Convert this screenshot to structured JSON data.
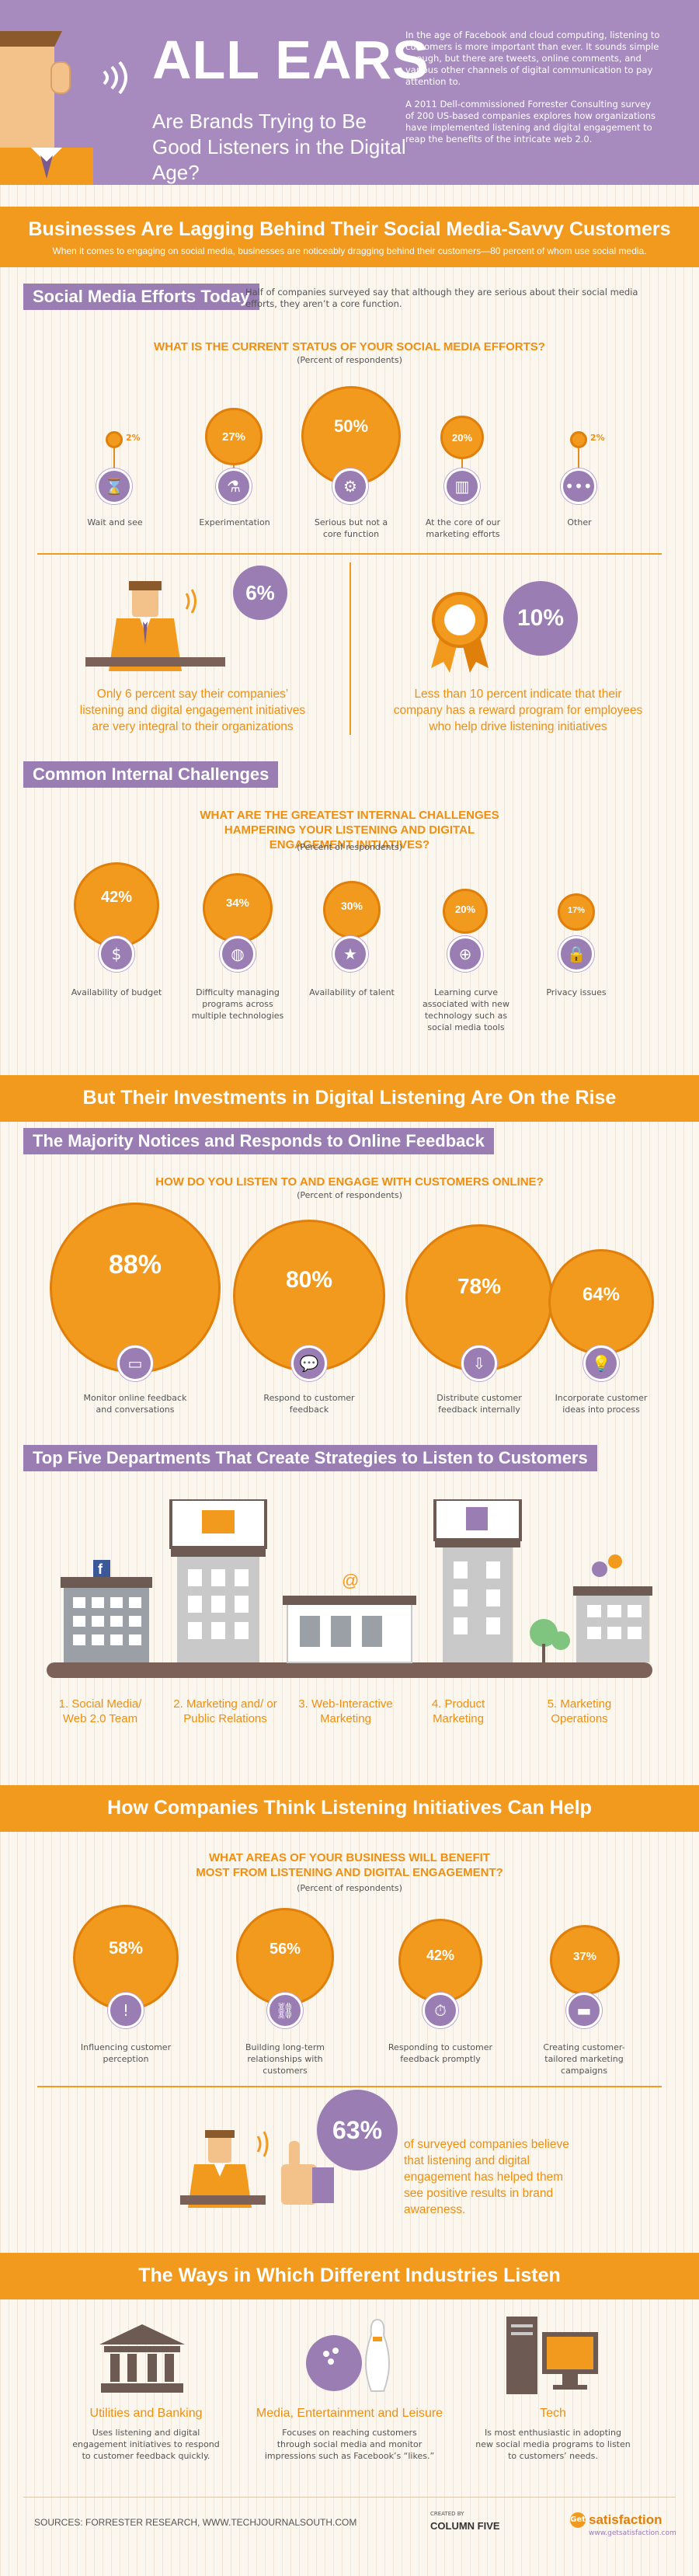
{
  "header": {
    "title": "ALL EARS",
    "subtitle": "Are Brands Trying to Be Good Listeners in the Digital Age?",
    "intro_p1": "In the age of Facebook and cloud computing, listening to customers is more important than ever. It sounds simple enough, but there are tweets, online comments, and various other channels of digital communication to pay attention to.",
    "intro_p2": "A 2011 Dell-commissioned Forrester Consulting survey of 200 US-based companies explores how organizations have implemented listening and digital engagement to reap the benefits of the intricate web 2.0."
  },
  "section1": {
    "banner": "Businesses Are Lagging Behind Their Social Media-Savvy Customers",
    "subline": "When it comes to engaging on social media, businesses are noticeably dragging behind their customers—80 percent of whom use social media.",
    "pill": "Social Media Efforts Today",
    "pill_note": "Half of companies surveyed say that although they are serious about their social media efforts, they aren’t a core function.",
    "question": "WHAT IS THE CURRENT STATUS OF YOUR SOCIAL MEDIA EFFORTS?",
    "respondents": "(Percent of respondents)",
    "items": [
      {
        "value": "2%",
        "label": "Wait and see",
        "icon": "hourglass-icon"
      },
      {
        "value": "27%",
        "label": "Experimentation",
        "icon": "flask-icon"
      },
      {
        "value": "50%",
        "label": "Serious but not a core function",
        "icon": "gears-icon"
      },
      {
        "value": "20%",
        "label": "At the core of our marketing efforts",
        "icon": "bar-chart-icon"
      },
      {
        "value": "2%",
        "label": "Other",
        "icon": "ellipsis-icon"
      }
    ],
    "stat_left_value": "6%",
    "stat_left_text": "Only 6 percent say their companies’ listening and digital engagement initiatives are very integral to their organizations",
    "stat_right_value": "10%",
    "stat_right_text": "Less than 10 percent indicate that their company has a reward program for employees who help drive listening initiatives"
  },
  "section2": {
    "pill": "Common Internal Challenges",
    "question": "WHAT ARE THE GREATEST INTERNAL CHALLENGES HAMPERING YOUR LISTENING AND DIGITAL ENGAGEMENT INITIATIVES?",
    "respondents": "(Percent of respondents)",
    "items": [
      {
        "value": "42%",
        "label": "Availability of budget",
        "icon": "money-icon"
      },
      {
        "value": "34%",
        "label": "Difficulty managing programs across multiple technologies",
        "icon": "globe-icon"
      },
      {
        "value": "30%",
        "label": "Availability of talent",
        "icon": "star-icon"
      },
      {
        "value": "20%",
        "label": "Learning curve associated with new technology such as social media tools",
        "icon": "network-icon"
      },
      {
        "value": "17%",
        "label": "Privacy issues",
        "icon": "lock-icon"
      }
    ]
  },
  "section3": {
    "banner": "But Their Investments in Digital Listening Are On the Rise",
    "pill": "The Majority Notices and Responds to Online Feedback",
    "question": "HOW DO YOU LISTEN TO AND ENGAGE WITH CUSTOMERS ONLINE?",
    "respondents": "(Percent of respondents)",
    "items": [
      {
        "value": "88%",
        "label": "Monitor online feedback and conversations",
        "icon": "monitor-icon"
      },
      {
        "value": "80%",
        "label": "Respond to customer feedback",
        "icon": "chat-icon"
      },
      {
        "value": "78%",
        "label": "Distribute customer feedback internally",
        "icon": "inbox-icon"
      },
      {
        "value": "64%",
        "label": "Incorporate customer ideas into process",
        "icon": "lightbulb-icon"
      }
    ]
  },
  "section4": {
    "pill": "Top Five Departments That Create Strategies to Listen to Customers",
    "depts": [
      "1. Social Media/ Web 2.0 Team",
      "2. Marketing and/ or Public Relations",
      "3. Web-Interactive Marketing",
      "4. Product Marketing",
      "5. Marketing Operations"
    ]
  },
  "section5": {
    "banner": "How Companies Think Listening Initiatives Can Help",
    "question": "WHAT AREAS OF YOUR BUSINESS WILL BENEFIT MOST FROM LISTENING AND DIGITAL ENGAGEMENT?",
    "respondents": "(Percent of respondents)",
    "items": [
      {
        "value": "58%",
        "label": "Influencing customer perception",
        "icon": "exclamation-icon"
      },
      {
        "value": "56%",
        "label": "Building long-term relationships with customers",
        "icon": "link-icon"
      },
      {
        "value": "42%",
        "label": "Responding to customer feedback promptly",
        "icon": "stopwatch-icon"
      },
      {
        "value": "37%",
        "label": "Creating customer-tailored marketing campaigns",
        "icon": "couch-icon"
      }
    ],
    "stat_value": "63%",
    "stat_text": "of surveyed companies believe that listening and digital engagement has helped them see positive results in brand awareness."
  },
  "section6": {
    "banner": "The Ways in Which Different Industries Listen",
    "industries": [
      {
        "title": "Utilities and Banking",
        "text": "Uses listening and digital engagement initiatives to respond to customer feedback quickly."
      },
      {
        "title": "Media, Entertainment and Leisure",
        "text": "Focuses on reaching customers through social media and monitor impressions such as Facebook’s “likes.”"
      },
      {
        "title": "Tech",
        "text": "Is most enthusiastic in adopting new social media programs to listen to customers’ needs."
      }
    ]
  },
  "footer": {
    "sources": "SOURCES: FORRESTER RESEARCH, WWW.TECHJOURNALSOUTH.COM",
    "created_by": "CREATED BY",
    "creator": "COLUMN FIVE",
    "sponsor": "satisfaction",
    "sponsor_url": "www.getsatisfaction.com",
    "sponsor_prefix": "Get"
  }
}
